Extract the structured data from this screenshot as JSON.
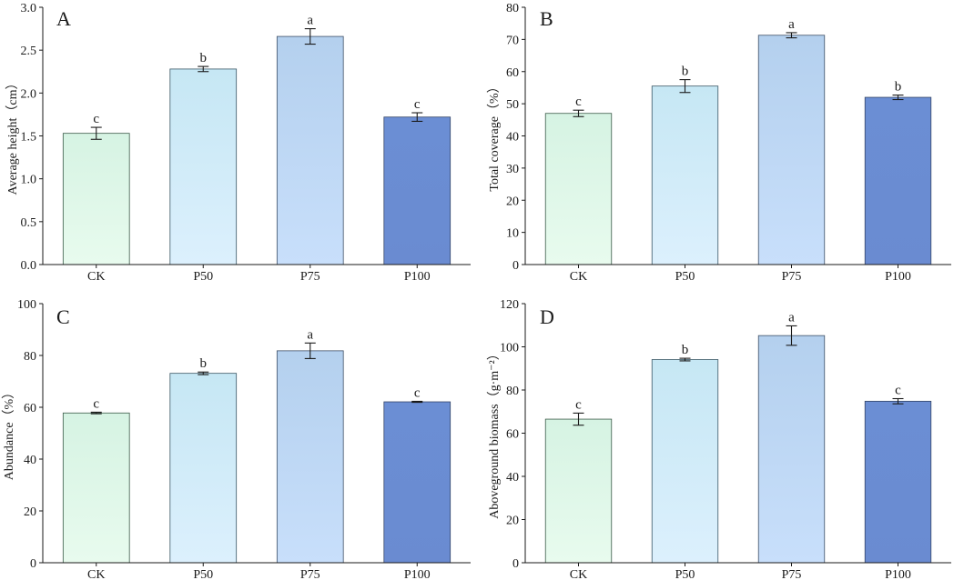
{
  "chart_data": [
    {
      "type": "bar",
      "panel": "A",
      "ylabel": "Average height（cm）",
      "categories": [
        "CK",
        "P50",
        "P75",
        "P100"
      ],
      "values": [
        1.53,
        2.28,
        2.66,
        1.72
      ],
      "errors": [
        0.07,
        0.03,
        0.09,
        0.05
      ],
      "letters": [
        "c",
        "b",
        "a",
        "c"
      ],
      "ylim": [
        0,
        3.0
      ],
      "yticks": [
        0,
        0.5,
        1.0,
        1.5,
        2.0,
        2.5,
        3.0
      ],
      "ytick_labels": [
        "0.0",
        "0.5",
        "1.0",
        "1.5",
        "2.0",
        "2.5",
        "3.0"
      ]
    },
    {
      "type": "bar",
      "panel": "B",
      "ylabel": "Total coverage（%）",
      "categories": [
        "CK",
        "P50",
        "P75",
        "P100"
      ],
      "values": [
        47,
        55.5,
        71.3,
        52
      ],
      "errors": [
        1.0,
        2.0,
        0.8,
        0.7
      ],
      "letters": [
        "c",
        "b",
        "a",
        "b"
      ],
      "ylim": [
        0,
        80
      ],
      "yticks": [
        0,
        10,
        20,
        30,
        40,
        50,
        60,
        70,
        80
      ],
      "ytick_labels": [
        "0",
        "10",
        "20",
        "30",
        "40",
        "50",
        "60",
        "70",
        "80"
      ]
    },
    {
      "type": "bar",
      "panel": "C",
      "ylabel": "Abundance（%）",
      "categories": [
        "CK",
        "P50",
        "P75",
        "P100"
      ],
      "values": [
        57.8,
        73.1,
        81.8,
        62.1
      ],
      "errors": [
        0.3,
        0.5,
        3.0,
        0.2
      ],
      "letters": [
        "c",
        "b",
        "a",
        "c"
      ],
      "ylim": [
        0,
        100
      ],
      "yticks": [
        0,
        20,
        40,
        60,
        80,
        100
      ],
      "ytick_labels": [
        "0",
        "20",
        "40",
        "60",
        "80",
        "100"
      ]
    },
    {
      "type": "bar",
      "panel": "D",
      "ylabel": "Aboveground biomass（g·m⁻²）",
      "categories": [
        "CK",
        "P50",
        "P75",
        "P100"
      ],
      "values": [
        66.5,
        94.1,
        105.2,
        74.8
      ],
      "errors": [
        2.8,
        0.6,
        4.5,
        1.2
      ],
      "letters": [
        "c",
        "b",
        "a",
        "c"
      ],
      "ylim": [
        0,
        120
      ],
      "yticks": [
        0,
        20,
        40,
        60,
        80,
        100,
        120
      ],
      "ytick_labels": [
        "0",
        "20",
        "40",
        "60",
        "80",
        "100",
        "120"
      ]
    }
  ],
  "colors": {
    "bars": [
      {
        "top": "#d6f3e3",
        "bottom": "#e8fbee",
        "edge": "#3a5a48"
      },
      {
        "top": "#c6e7f4",
        "bottom": "#dcf0fd",
        "edge": "#3b5766"
      },
      {
        "top": "#b4d0ee",
        "bottom": "#c8dffb",
        "edge": "#3d4f66"
      },
      {
        "top": "#6b8ed4",
        "bottom": "#6a8bd1",
        "edge": "#334466"
      }
    ],
    "axis": "#1a1a1a"
  }
}
